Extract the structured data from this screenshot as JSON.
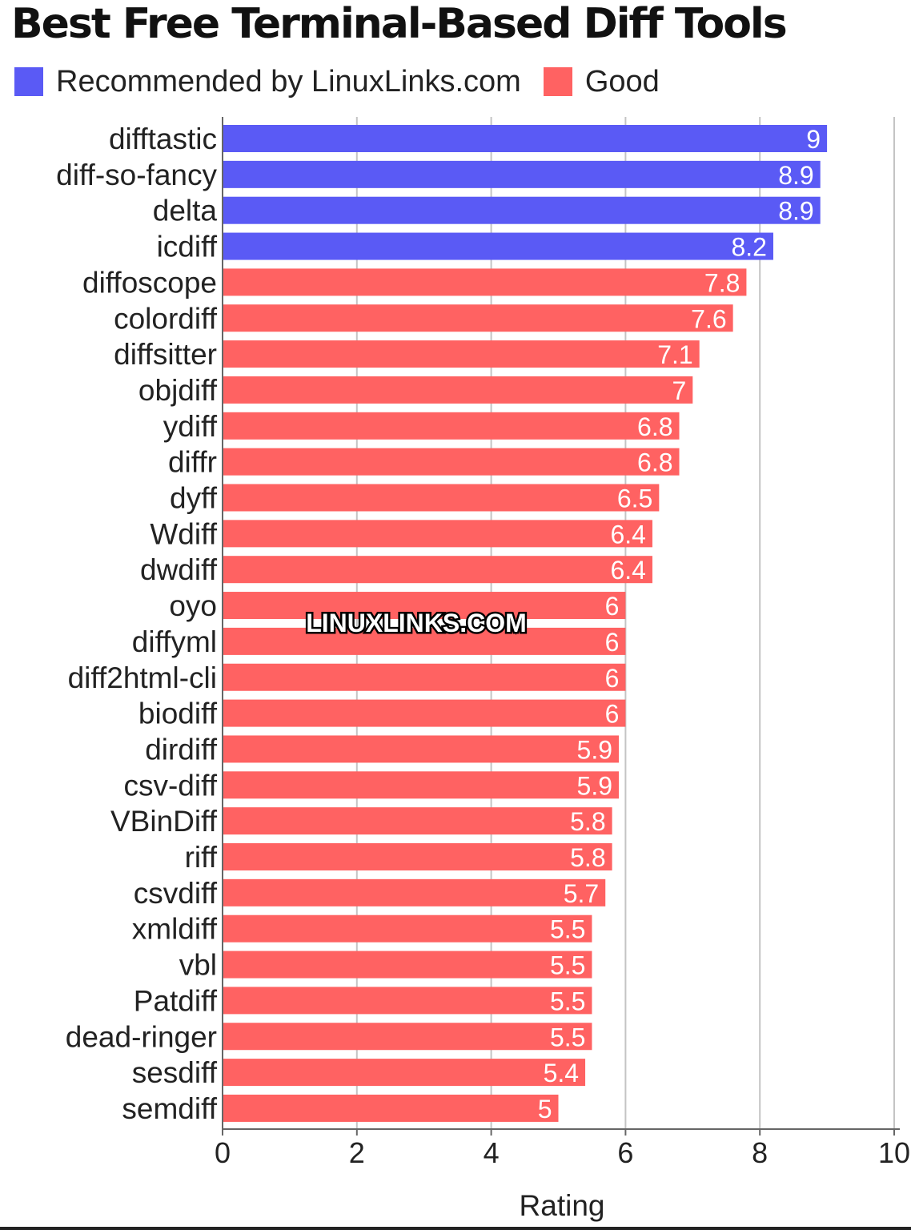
{
  "title": "Best Free Terminal-Based Diff Tools",
  "legend": [
    {
      "label": "Recommended by LinuxLinks.com",
      "color": "#5a5af5"
    },
    {
      "label": "Good",
      "color": "#ff6262"
    }
  ],
  "watermark": "LINUXLINKS.COM",
  "chart_data": {
    "type": "bar",
    "orientation": "horizontal",
    "categories": [
      "difftastic",
      "diff-so-fancy",
      "delta",
      "icdiff",
      "diffoscope",
      "colordiff",
      "diffsitter",
      "objdiff",
      "ydiff",
      "diffr",
      "dyff",
      "Wdiff",
      "dwdiff",
      "oyo",
      "diffyml",
      "diff2html-cli",
      "biodiff",
      "dirdiff",
      "csv-diff",
      "VBinDiff",
      "riff",
      "csvdiff",
      "xmldiff",
      "vbl",
      "Patdiff",
      "dead-ringer",
      "sesdiff",
      "semdiff"
    ],
    "values": [
      9,
      8.9,
      8.9,
      8.2,
      7.8,
      7.6,
      7.1,
      7,
      6.8,
      6.8,
      6.5,
      6.4,
      6.4,
      6,
      6,
      6,
      6,
      5.9,
      5.9,
      5.8,
      5.8,
      5.7,
      5.5,
      5.5,
      5.5,
      5.5,
      5.4,
      5
    ],
    "value_labels": [
      "9",
      "8.9",
      "8.9",
      "8.2",
      "7.8",
      "7.6",
      "7.1",
      "7",
      "6.8",
      "6.8",
      "6.5",
      "6.4",
      "6.4",
      "6",
      "6",
      "6",
      "6",
      "5.9",
      "5.9",
      "5.8",
      "5.8",
      "5.7",
      "5.5",
      "5.5",
      "5.5",
      "5.5",
      "5.4",
      "5"
    ],
    "groups": [
      "Recommended by LinuxLinks.com",
      "Recommended by LinuxLinks.com",
      "Recommended by LinuxLinks.com",
      "Recommended by LinuxLinks.com",
      "Good",
      "Good",
      "Good",
      "Good",
      "Good",
      "Good",
      "Good",
      "Good",
      "Good",
      "Good",
      "Good",
      "Good",
      "Good",
      "Good",
      "Good",
      "Good",
      "Good",
      "Good",
      "Good",
      "Good",
      "Good",
      "Good",
      "Good",
      "Good"
    ],
    "xlabel": "Rating",
    "ylabel": "",
    "xlim": [
      0,
      10
    ],
    "ticks": [
      0,
      2,
      4,
      6,
      8,
      10
    ],
    "tick_labels": [
      "0",
      "2",
      "4",
      "6",
      "8",
      "10"
    ],
    "grid": "vertical",
    "legend_position": "top-left"
  }
}
